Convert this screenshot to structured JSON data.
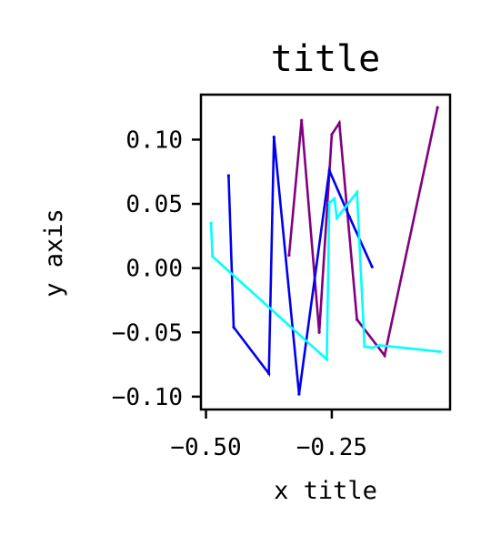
{
  "chart_data": {
    "type": "line",
    "title": "title",
    "xlabel": "x title",
    "ylabel": "y axis",
    "xlim": [
      -0.51,
      -0.015
    ],
    "ylim": [
      -0.11,
      0.135
    ],
    "xticks": [
      {
        "value": -0.5,
        "label": "−0.50"
      },
      {
        "value": -0.25,
        "label": "−0.25"
      }
    ],
    "yticks": [
      {
        "value": 0.1,
        "label": "0.10"
      },
      {
        "value": 0.05,
        "label": "0.05"
      },
      {
        "value": 0.0,
        "label": "0.00"
      },
      {
        "value": -0.05,
        "label": "−0.05"
      },
      {
        "value": -0.1,
        "label": "−0.10"
      }
    ],
    "grid": false,
    "series": [
      {
        "color": "#800080",
        "x": [
          -0.335,
          -0.31,
          -0.275,
          -0.25,
          -0.235,
          -0.2,
          -0.145,
          -0.04
        ],
        "y": [
          0.01,
          0.115,
          -0.05,
          0.104,
          0.113,
          -0.04,
          -0.068,
          0.125
        ]
      },
      {
        "color": "#0000ee",
        "x": [
          -0.455,
          -0.445,
          -0.375,
          -0.365,
          -0.315,
          -0.255,
          -0.215,
          -0.17
        ],
        "y": [
          0.072,
          -0.046,
          -0.082,
          0.102,
          -0.098,
          0.076,
          0.04,
          0.001
        ]
      },
      {
        "color": "#00ffff",
        "x": [
          -0.49,
          -0.487,
          -0.26,
          -0.255,
          -0.245,
          -0.24,
          -0.2,
          -0.185,
          -0.17,
          -0.155,
          -0.035
        ],
        "y": [
          0.035,
          0.009,
          -0.071,
          0.051,
          0.054,
          0.039,
          0.059,
          -0.061,
          -0.062,
          -0.06,
          -0.065
        ]
      }
    ]
  }
}
